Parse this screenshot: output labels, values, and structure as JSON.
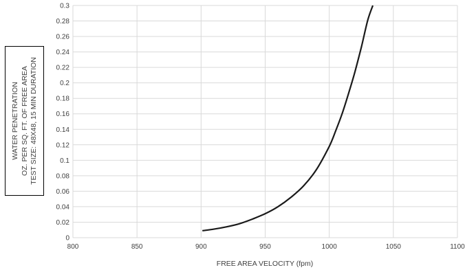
{
  "chart_data": {
    "type": "line",
    "title": "",
    "xlabel": "FREE AREA VELOCITY (fpm)",
    "ylabel_lines": [
      "WATER PENETRATION",
      "OZ. PER SQ. FT. OF FREE AREA",
      "TEST SIZE: 48X48, 15 MIN DURATION"
    ],
    "xlim": [
      800,
      1100
    ],
    "ylim": [
      0,
      0.3
    ],
    "x_ticks": [
      800,
      850,
      900,
      950,
      1000,
      1050,
      1100
    ],
    "y_ticks": [
      0,
      0.02,
      0.04,
      0.06,
      0.08,
      0.1,
      0.12,
      0.14,
      0.16,
      0.18,
      0.2,
      0.22,
      0.24,
      0.26,
      0.28,
      0.3
    ],
    "grid": true,
    "legend": "none",
    "series": [
      {
        "color": "#1a1a1a",
        "x": [
          901,
          910,
          920,
          930,
          940,
          950,
          960,
          970,
          980,
          990,
          1000,
          1005,
          1010,
          1015,
          1020,
          1025,
          1030,
          1034
        ],
        "y": [
          0.009,
          0.011,
          0.014,
          0.018,
          0.024,
          0.031,
          0.04,
          0.052,
          0.067,
          0.088,
          0.118,
          0.138,
          0.16,
          0.186,
          0.214,
          0.246,
          0.281,
          0.3
        ]
      }
    ]
  }
}
